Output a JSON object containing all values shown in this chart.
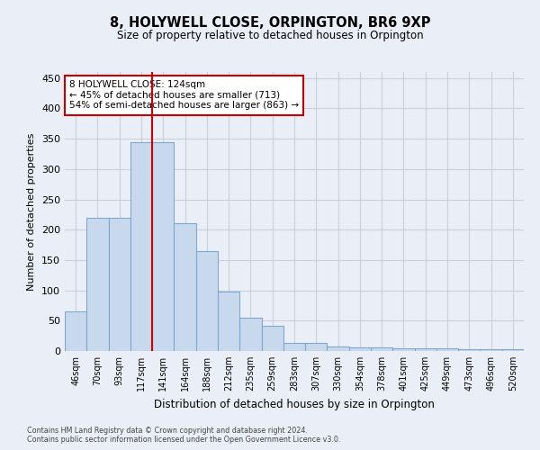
{
  "title": "8, HOLYWELL CLOSE, ORPINGTON, BR6 9XP",
  "subtitle": "Size of property relative to detached houses in Orpington",
  "xlabel": "Distribution of detached houses by size in Orpington",
  "ylabel": "Number of detached properties",
  "bar_color": "#c9d9ed",
  "bar_edge_color": "#7fa8cc",
  "grid_color": "#c8d0dc",
  "background_color": "#eaeff7",
  "vline_color": "#cc0000",
  "vline_x": 3.5,
  "categories": [
    "46sqm",
    "70sqm",
    "93sqm",
    "117sqm",
    "141sqm",
    "164sqm",
    "188sqm",
    "212sqm",
    "235sqm",
    "259sqm",
    "283sqm",
    "307sqm",
    "330sqm",
    "354sqm",
    "378sqm",
    "401sqm",
    "425sqm",
    "449sqm",
    "473sqm",
    "496sqm",
    "520sqm"
  ],
  "values": [
    65,
    220,
    220,
    345,
    345,
    210,
    165,
    98,
    55,
    42,
    14,
    14,
    8,
    6,
    6,
    4,
    4,
    4,
    3,
    3,
    3
  ],
  "ylim": [
    0,
    460
  ],
  "yticks": [
    0,
    50,
    100,
    150,
    200,
    250,
    300,
    350,
    400,
    450
  ],
  "annotation_text": "8 HOLYWELL CLOSE: 124sqm\n← 45% of detached houses are smaller (713)\n54% of semi-detached houses are larger (863) →",
  "annotation_box_color": "#ffffff",
  "annotation_box_edge": "#cc0000",
  "footer_line1": "Contains HM Land Registry data © Crown copyright and database right 2024.",
  "footer_line2": "Contains public sector information licensed under the Open Government Licence v3.0."
}
